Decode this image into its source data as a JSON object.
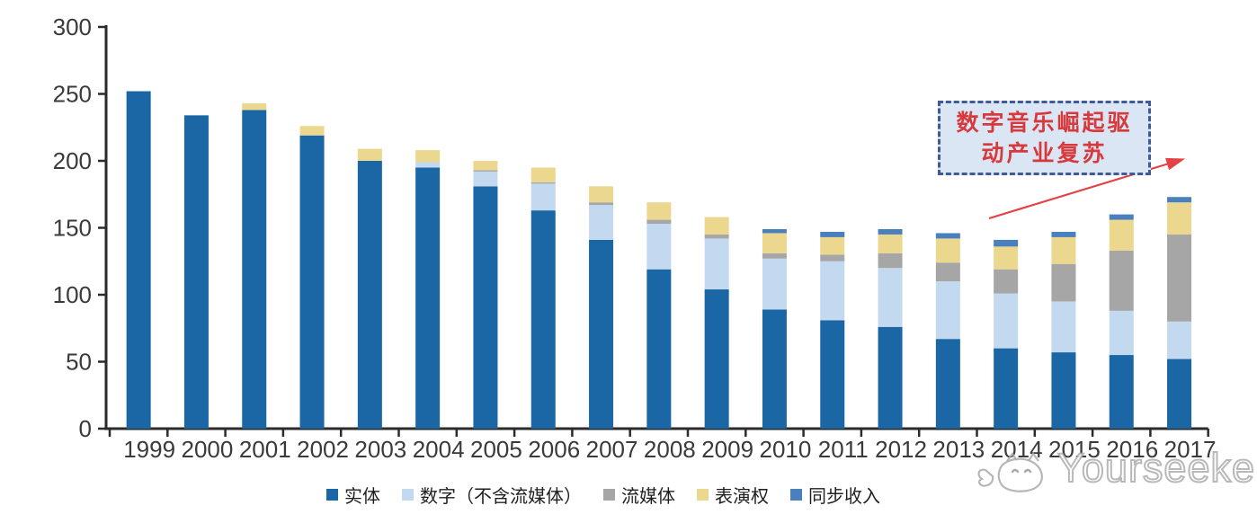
{
  "chart_data": {
    "type": "bar",
    "variant": "stacked",
    "title": "",
    "xlabel": "",
    "ylabel": "",
    "ylim": [
      0,
      300
    ],
    "yticks": [
      0,
      50,
      100,
      150,
      200,
      250,
      300
    ],
    "grid": false,
    "legend_position": "bottom",
    "categories": [
      "1999",
      "2000",
      "2001",
      "2002",
      "2003",
      "2004",
      "2005",
      "2006",
      "2007",
      "2008",
      "2009",
      "2010",
      "2011",
      "2012",
      "2013",
      "2014",
      "2015",
      "2016",
      "2017"
    ],
    "series": [
      {
        "name": "实体",
        "color": "#1B67A5",
        "values": [
          252,
          234,
          238,
          219,
          200,
          195,
          181,
          163,
          141,
          119,
          104,
          89,
          81,
          76,
          67,
          60,
          57,
          55,
          52
        ]
      },
      {
        "name": "数字（不含流媒体）",
        "color": "#C3D9EF",
        "values": [
          0,
          0,
          0,
          0,
          0,
          4,
          11,
          20,
          26,
          34,
          38,
          38,
          44,
          44,
          43,
          41,
          38,
          33,
          28
        ]
      },
      {
        "name": "流媒体",
        "color": "#A6A6A6",
        "values": [
          0,
          0,
          0,
          0,
          0,
          0,
          1,
          1,
          2,
          3,
          3,
          4,
          5,
          11,
          14,
          18,
          28,
          45,
          65
        ]
      },
      {
        "name": "表演权",
        "color": "#EBD78E",
        "values": [
          0,
          0,
          5,
          7,
          9,
          9,
          7,
          11,
          12,
          13,
          13,
          15,
          13,
          14,
          18,
          17,
          20,
          23,
          24
        ]
      },
      {
        "name": "同步收入",
        "color": "#4B80BE",
        "values": [
          0,
          0,
          0,
          0,
          0,
          0,
          0,
          0,
          0,
          0,
          0,
          3,
          4,
          4,
          4,
          5,
          4,
          4,
          4
        ]
      }
    ],
    "totals": [
      252,
      234,
      243,
      226,
      209,
      208,
      200,
      195,
      181,
      169,
      158,
      149,
      147,
      149,
      146,
      141,
      147,
      160,
      173
    ]
  },
  "annotation": {
    "line1": "数字音乐崛起驱",
    "line2": "动产业复苏",
    "text_color": "#D8393C",
    "box_fill": "#DAE6F4",
    "box_border": "#3F5A96",
    "arrow_color": "#E34345"
  },
  "axis": {
    "line_color": "#2B2B2B",
    "tick_label_color": "#3A3A3A"
  },
  "watermark": {
    "text": "Yourseeker",
    "logo": "cat-mascot-icon"
  }
}
